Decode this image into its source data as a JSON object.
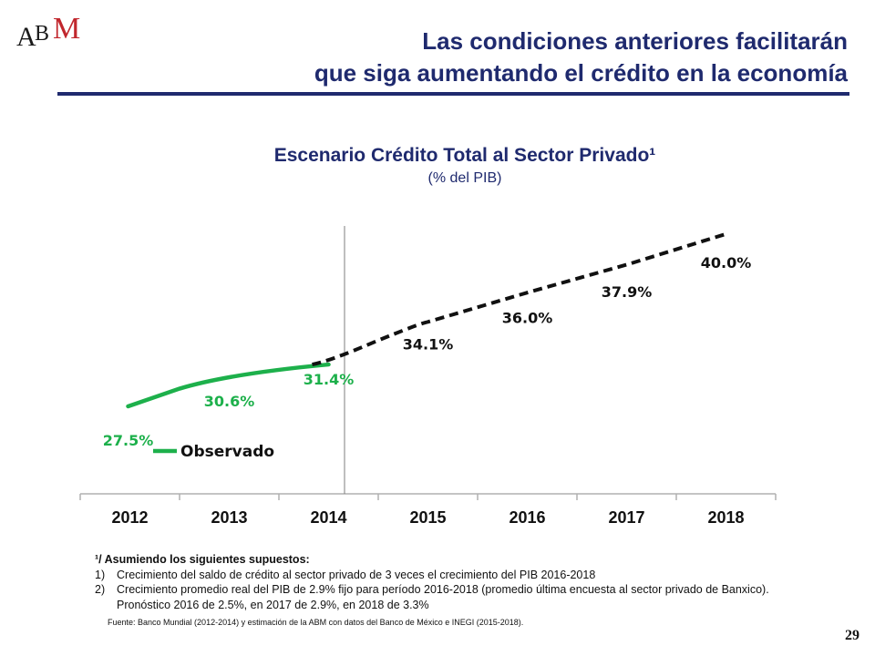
{
  "logo": {
    "text": "ABM",
    "colors": {
      "A": "#1a1a1a",
      "B": "#1a1a1a",
      "M": "#c1272d"
    }
  },
  "slide": {
    "title_line1": "Las condiciones anteriores facilitarán",
    "title_line2": "que siga aumentando el crédito en la economía",
    "page_number": "29",
    "title_color": "#1f2a6e"
  },
  "chart_data": {
    "type": "line",
    "title": "Escenario Crédito Total al Sector Privado¹",
    "subtitle": "(% del PIB)",
    "categories": [
      "2012",
      "2013",
      "2014",
      "2015",
      "2016",
      "2017",
      "2018"
    ],
    "series": [
      {
        "name": "Observado",
        "style": "solid",
        "color": "#1db04b",
        "x": [
          "2012",
          "2013",
          "2014"
        ],
        "values": [
          27.5,
          30.6,
          31.4
        ],
        "labels": [
          "27.5%",
          "30.6%",
          "31.4%"
        ]
      },
      {
        "style": "dashed",
        "color": "#111111",
        "x": [
          "2014",
          "2015",
          "2016",
          "2017",
          "2018"
        ],
        "values": [
          31.4,
          34.1,
          36.0,
          37.9,
          40.0
        ],
        "labels": [
          "",
          "34.1%",
          "36.0%",
          "37.9%",
          "40.0%"
        ]
      }
    ],
    "ylim": [
      22,
      42
    ],
    "grid": false,
    "divider_after": "2014",
    "legend": "bottom-left"
  },
  "notes": {
    "header": "¹/ Asumiendo los siguientes supuestos:",
    "items": [
      {
        "num": "1)",
        "text": "Crecimiento del saldo de crédito al sector privado de 3 veces el crecimiento del PIB 2016-2018"
      },
      {
        "num": "2)",
        "text": "Crecimiento promedio real del PIB de 2.9% fijo para período 2016-2018 (promedio última encuesta al sector privado de Banxico). Pronóstico 2016 de 2.5%, en 2017 de 2.9%, en 2018 de 3.3%"
      }
    ],
    "source": "Fuente: Banco Mundial  (2012-2014) y estimación de la ABM con datos del Banco de México e INEGI (2015-2018)."
  }
}
